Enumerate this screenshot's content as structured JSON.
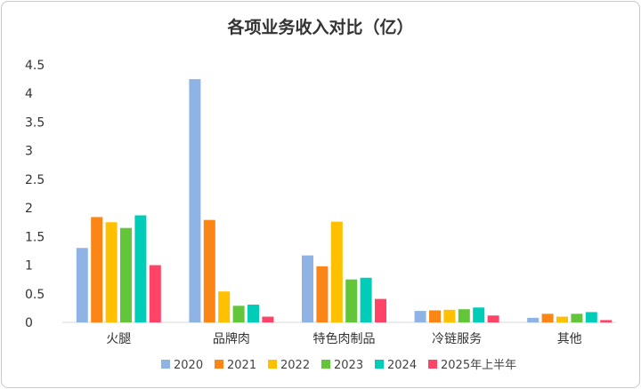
{
  "chart_data": {
    "type": "bar",
    "title": "各项业务收入对比（亿）",
    "xlabel": "",
    "ylabel": "",
    "ylim": [
      0,
      4.5
    ],
    "yticks": [
      "0",
      "0.5",
      "1",
      "1.5",
      "2",
      "2.5",
      "3",
      "3.5",
      "4",
      "4.5"
    ],
    "grid": false,
    "legend_position": "bottom",
    "categories": [
      "火腿",
      "品牌肉",
      "特色肉制品",
      "冷链服务",
      "其他"
    ],
    "series": [
      {
        "name": "2020",
        "color": "#8fb3e4",
        "values": [
          1.3,
          4.25,
          1.17,
          0.2,
          0.08
        ]
      },
      {
        "name": "2021",
        "color": "#fb8616",
        "values": [
          1.84,
          1.79,
          0.98,
          0.21,
          0.15
        ]
      },
      {
        "name": "2022",
        "color": "#ffc000",
        "values": [
          1.75,
          0.54,
          1.76,
          0.22,
          0.1
        ]
      },
      {
        "name": "2023",
        "color": "#62c53a",
        "values": [
          1.65,
          0.29,
          0.75,
          0.23,
          0.15
        ]
      },
      {
        "name": "2024",
        "color": "#00cdb8",
        "values": [
          1.87,
          0.31,
          0.78,
          0.26,
          0.18
        ]
      },
      {
        "name": "2025年上半年",
        "color": "#ff4468",
        "values": [
          1.0,
          0.1,
          0.41,
          0.12,
          0.04
        ]
      }
    ]
  }
}
